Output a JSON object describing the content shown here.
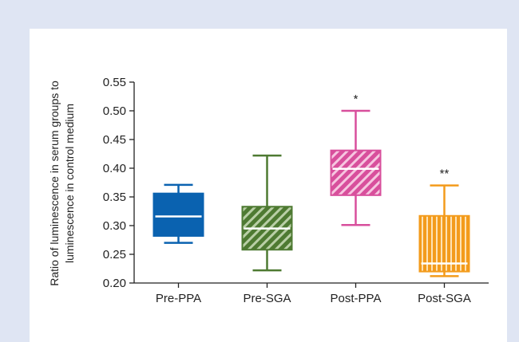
{
  "chart_data": {
    "type": "box",
    "ylabel_line1": "Ratio of luminescence in serum groups to",
    "ylabel_line2": "luminescence in control medium",
    "ylim": [
      0.2,
      0.55
    ],
    "yticks": [
      "0.20",
      "0.25",
      "0.30",
      "0.35",
      "0.40",
      "0.45",
      "0.50",
      "0.55"
    ],
    "categories": [
      "Pre-PPA",
      "Pre-SGA",
      "Post-PPA",
      "Post-SGA"
    ],
    "boxes": [
      {
        "name": "Pre-PPA",
        "min": 0.27,
        "q1": 0.282,
        "median": 0.316,
        "q3": 0.356,
        "max": 0.371,
        "color": "#0a62b0",
        "pattern": "solid",
        "annotation": ""
      },
      {
        "name": "Pre-SGA",
        "min": 0.222,
        "q1": 0.258,
        "median": 0.295,
        "q3": 0.333,
        "max": 0.422,
        "color": "#4e7a32",
        "pattern": "diagonal",
        "annotation": ""
      },
      {
        "name": "Post-PPA",
        "min": 0.301,
        "q1": 0.353,
        "median": 0.399,
        "q3": 0.431,
        "max": 0.5,
        "color": "#d84f9c",
        "pattern": "diagonal",
        "annotation": "*"
      },
      {
        "name": "Post-SGA",
        "min": 0.212,
        "q1": 0.22,
        "median": 0.234,
        "q3": 0.317,
        "max": 0.37,
        "color": "#f39b1c",
        "pattern": "vertical",
        "annotation": "**"
      }
    ]
  }
}
